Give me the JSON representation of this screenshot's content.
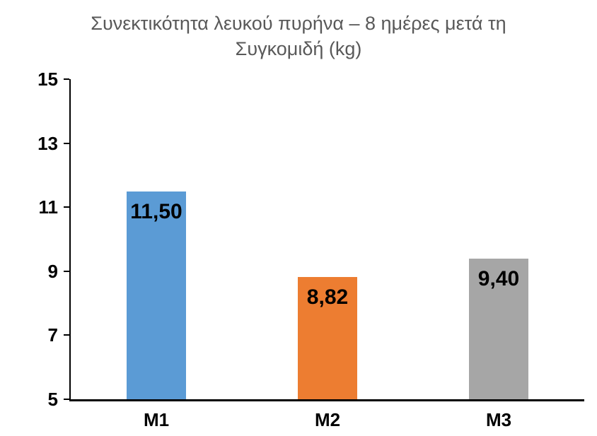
{
  "chart_data": {
    "type": "bar",
    "title": "Συνεκτικότητα λευκού πυρήνα – 8 ημέρες μετά τη Συγκομιδή (kg)",
    "title_color": "#595959",
    "categories": [
      "M1",
      "M2",
      "M3"
    ],
    "values": [
      11.5,
      8.82,
      9.4
    ],
    "value_labels": [
      "11,50",
      "8,82",
      "9,40"
    ],
    "bar_colors": [
      "#5B9BD5",
      "#ED7D31",
      "#A6A6A6"
    ],
    "xlabel": "",
    "ylabel": "",
    "ylim": [
      5,
      15
    ],
    "yticks": [
      15,
      13,
      11,
      9,
      7,
      5
    ],
    "ytick_labels": [
      "15",
      "13",
      "11",
      "9",
      "7",
      "5"
    ],
    "grid": false,
    "legend": "none",
    "axis_color": "#000000",
    "label_color": "#000000"
  }
}
